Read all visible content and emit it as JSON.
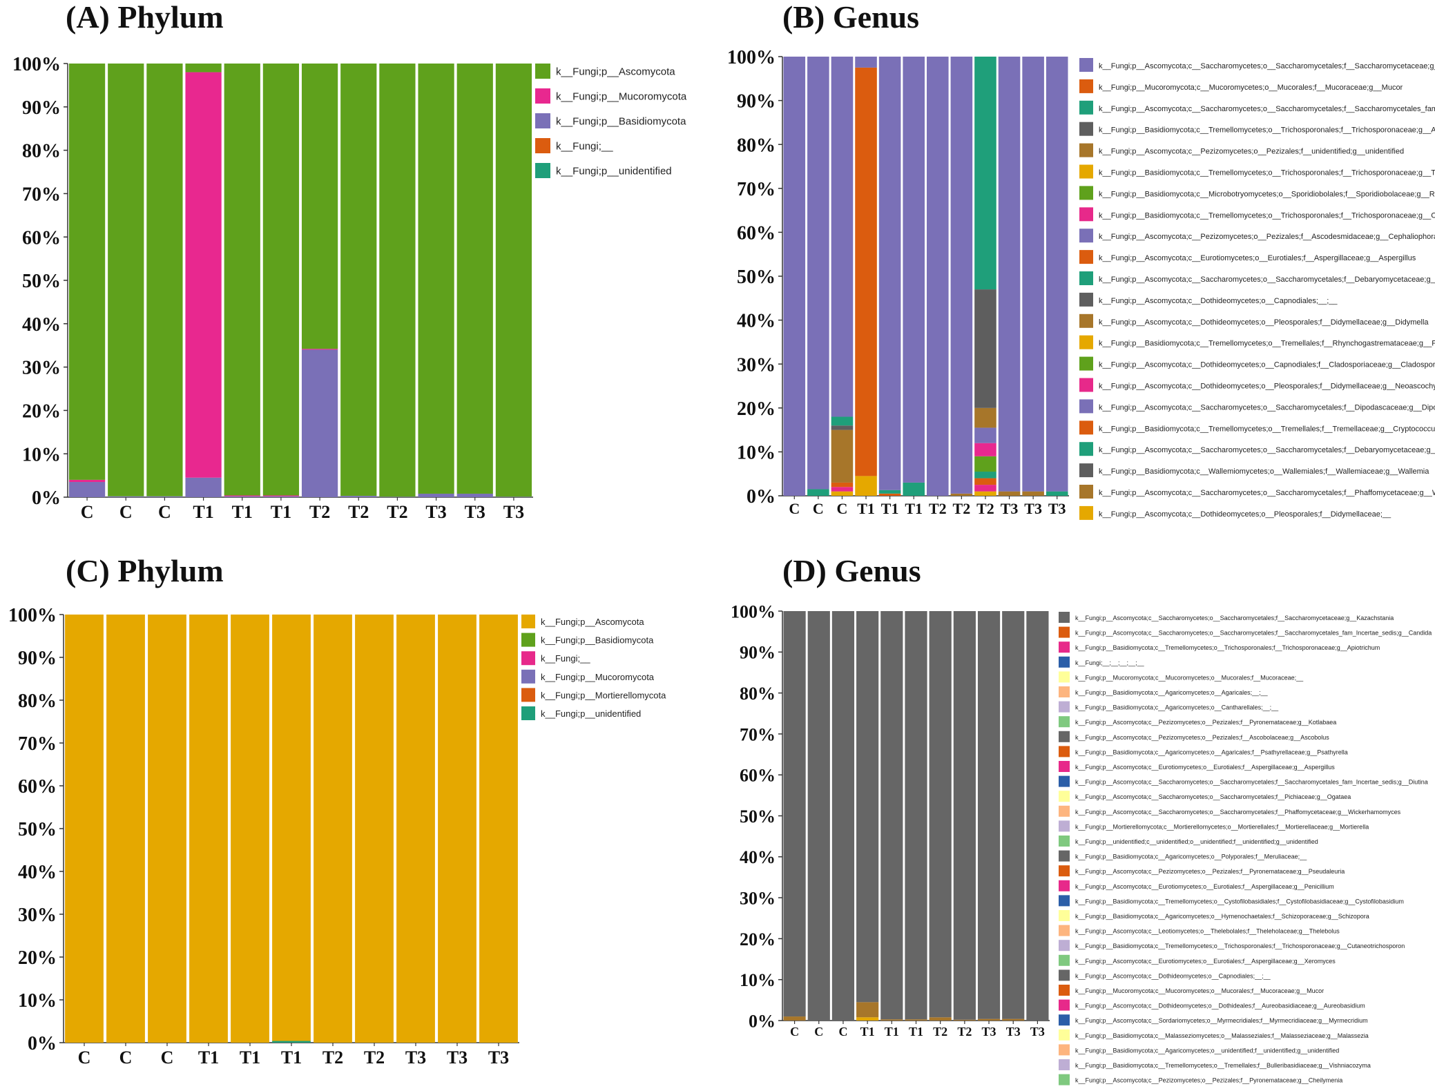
{
  "colors": {
    "green": "#5fa11c",
    "magenta": "#e8288f",
    "purple": "#7a70b7",
    "orange": "#db5c0f",
    "teal": "#1f9f7a",
    "gray": "#5e5e5e",
    "brown": "#a7762a",
    "gold": "#e5a800",
    "pink": "#e7298a",
    "blue": "#2b5ea8",
    "lightyellow": "#ffff99",
    "peach": "#fdb57f",
    "lavender": "#beaed4",
    "lightgreen": "#7fc97f",
    "darkgray": "#666666"
  },
  "chart_data": [
    {
      "id": "A",
      "type": "bar",
      "stacked": true,
      "title": "(A) Phylum",
      "categories": [
        "C",
        "C",
        "C",
        "T1",
        "T1",
        "T1",
        "T2",
        "T2",
        "T2",
        "T3",
        "T3",
        "T3"
      ],
      "ylim": [
        0,
        100
      ],
      "yticks": [
        "0%",
        "10%",
        "20%",
        "30%",
        "40%",
        "50%",
        "60%",
        "70%",
        "80%",
        "90%",
        "100%"
      ],
      "series": [
        {
          "name": "k__Fungi;p__Basidiomycota",
          "color": "purple",
          "values": [
            3.5,
            0.2,
            0.2,
            4.5,
            0.2,
            0.2,
            34,
            0.3,
            0.1,
            0.8,
            0.8,
            0.1
          ]
        },
        {
          "name": "k__Fungi;p__Mucoromycota",
          "color": "magenta",
          "values": [
            0.5,
            0,
            0,
            93.5,
            0.2,
            0.2,
            0.2,
            0,
            0,
            0,
            0,
            0
          ]
        },
        {
          "name": "k__Fungi;__",
          "color": "orange",
          "values": [
            0,
            0,
            0,
            0,
            0,
            0,
            0,
            0,
            0,
            0,
            0,
            0
          ]
        },
        {
          "name": "k__Fungi;p__unidentified",
          "color": "teal",
          "values": [
            0,
            0,
            0,
            0,
            0,
            0,
            0,
            0,
            0,
            0,
            0,
            0
          ]
        },
        {
          "name": "k__Fungi;p__Ascomycota",
          "color": "green",
          "values": [
            96,
            99.8,
            99.8,
            2,
            99.6,
            99.6,
            65.8,
            99.7,
            99.9,
            99.2,
            99.2,
            99.9
          ]
        }
      ],
      "legend": [
        {
          "label": "k__Fungi;p__Ascomycota",
          "color": "green"
        },
        {
          "label": "k__Fungi;p__Mucoromycota",
          "color": "magenta"
        },
        {
          "label": "k__Fungi;p__Basidiomycota",
          "color": "purple"
        },
        {
          "label": "k__Fungi;__",
          "color": "orange"
        },
        {
          "label": "k__Fungi;p__unidentified",
          "color": "teal"
        }
      ]
    },
    {
      "id": "B",
      "type": "bar",
      "stacked": true,
      "title": "(B) Genus",
      "categories": [
        "C",
        "C",
        "C",
        "T1",
        "T1",
        "T1",
        "T2",
        "T2",
        "T2",
        "T3",
        "T3",
        "T3"
      ],
      "ylim": [
        0,
        100
      ],
      "yticks": [
        "0%",
        "10%",
        "20%",
        "30%",
        "40%",
        "50%",
        "60%",
        "70%",
        "80%",
        "90%",
        "100%"
      ],
      "series": [
        {
          "name": "gold",
          "color": "gold",
          "values": [
            0,
            0,
            1,
            4.5,
            0,
            0,
            0,
            0,
            1,
            0,
            0,
            0
          ]
        },
        {
          "name": "pink",
          "color": "pink",
          "values": [
            0,
            0,
            1,
            0,
            0,
            0,
            0,
            0,
            1.5,
            0,
            0,
            0
          ]
        },
        {
          "name": "orange2",
          "color": "orange",
          "values": [
            0,
            0,
            1,
            0,
            0.5,
            0,
            0,
            0,
            1.5,
            0,
            0,
            0
          ]
        },
        {
          "name": "teal2",
          "color": "teal",
          "values": [
            0,
            1.5,
            0,
            0,
            0.8,
            3,
            0,
            0,
            1.5,
            0,
            0,
            1
          ]
        },
        {
          "name": "brown",
          "color": "brown",
          "values": [
            0,
            0,
            12,
            0,
            0,
            0,
            0,
            0.5,
            0,
            1,
            1,
            0
          ]
        },
        {
          "name": "gray",
          "color": "gray",
          "values": [
            0,
            0,
            1,
            0,
            0,
            0,
            0,
            0,
            0,
            0,
            0,
            0
          ]
        },
        {
          "name": "green2",
          "color": "green",
          "values": [
            0,
            0,
            0,
            0,
            0,
            0,
            0,
            0,
            3.5,
            0,
            0,
            0
          ]
        },
        {
          "name": "magenta2",
          "color": "magenta",
          "values": [
            0,
            0,
            0,
            0,
            0,
            0,
            0,
            0,
            3,
            0,
            0,
            0
          ]
        },
        {
          "name": "purple2",
          "color": "purple",
          "values": [
            0,
            0,
            0,
            0,
            0,
            0,
            0,
            0,
            3.5,
            0,
            0,
            0
          ]
        },
        {
          "name": "brown2",
          "color": "brown",
          "values": [
            0,
            0,
            0,
            0,
            0,
            0,
            0,
            0,
            4.5,
            0,
            0,
            0
          ]
        },
        {
          "name": "gray2",
          "color": "gray",
          "values": [
            0,
            0,
            0,
            0,
            0,
            0,
            0,
            0,
            27,
            0,
            0,
            0
          ]
        },
        {
          "name": "Mucor",
          "color": "orange",
          "values": [
            0,
            0,
            0,
            93,
            0,
            0,
            0,
            0,
            0,
            0,
            0,
            0
          ]
        },
        {
          "name": "teal3",
          "color": "teal",
          "values": [
            0,
            0,
            2,
            0,
            0,
            0,
            0,
            0,
            0,
            0,
            0,
            0
          ]
        },
        {
          "name": "Candida",
          "color": "teal",
          "values": [
            0,
            0,
            0,
            0,
            0,
            0,
            0,
            0,
            53,
            0,
            0,
            0
          ]
        },
        {
          "name": "Kazachstania",
          "color": "purple",
          "values": [
            100,
            98.5,
            82,
            2.5,
            98.7,
            97,
            100,
            99.5,
            0,
            99,
            99,
            99
          ]
        }
      ],
      "legend": [
        {
          "label": "k__Fungi;p__Ascomycota;c__Saccharomycetes;o__Saccharomycetales;f__Saccharomycetaceae;g__Kazachstania",
          "color": "purple"
        },
        {
          "label": "k__Fungi;p__Mucoromycota;c__Mucoromycetes;o__Mucorales;f__Mucoraceae;g__Mucor",
          "color": "orange"
        },
        {
          "label": "k__Fungi;p__Ascomycota;c__Saccharomycetes;o__Saccharomycetales;f__Saccharomycetales_fam_Incertae_sedis;g__Candida",
          "color": "teal"
        },
        {
          "label": "k__Fungi;p__Basidiomycota;c__Tremellomycetes;o__Trichosporonales;f__Trichosporonaceae;g__Apiotrichum",
          "color": "gray"
        },
        {
          "label": "k__Fungi;p__Ascomycota;c__Pezizomycetes;o__Pezizales;f__unidentified;g__unidentified",
          "color": "brown"
        },
        {
          "label": "k__Fungi;p__Basidiomycota;c__Tremellomycetes;o__Trichosporonales;f__Trichosporonaceae;g__Trichosporon",
          "color": "gold"
        },
        {
          "label": "k__Fungi;p__Basidiomycota;c__Microbotryomycetes;o__Sporidiobolales;f__Sporidiobolaceae;g__Rhodotorula",
          "color": "green"
        },
        {
          "label": "k__Fungi;p__Basidiomycota;c__Tremellomycetes;o__Trichosporonales;f__Trichosporonaceae;g__Cutaneotrichosporon",
          "color": "pink"
        },
        {
          "label": "k__Fungi;p__Ascomycota;c__Pezizomycetes;o__Pezizales;f__Ascodesmidaceae;g__Cephaliophora",
          "color": "purple"
        },
        {
          "label": "k__Fungi;p__Ascomycota;c__Eurotiomycetes;o__Eurotiales;f__Aspergillaceae;g__Aspergillus",
          "color": "orange"
        },
        {
          "label": "k__Fungi;p__Ascomycota;c__Saccharomycetes;o__Saccharomycetales;f__Debaryomycetaceae;g__Hyphopichia",
          "color": "teal"
        },
        {
          "label": "k__Fungi;p__Ascomycota;c__Dothideomycetes;o__Capnodiales;__;__",
          "color": "gray"
        },
        {
          "label": "k__Fungi;p__Ascomycota;c__Dothideomycetes;o__Pleosporales;f__Didymellaceae;g__Didymella",
          "color": "brown"
        },
        {
          "label": "k__Fungi;p__Basidiomycota;c__Tremellomycetes;o__Tremellales;f__Rhynchogastremataceae;g__Papiliotrema",
          "color": "gold"
        },
        {
          "label": "k__Fungi;p__Ascomycota;c__Dothideomycetes;o__Capnodiales;f__Cladosporiaceae;g__Cladosporium",
          "color": "green"
        },
        {
          "label": "k__Fungi;p__Ascomycota;c__Dothideomycetes;o__Pleosporales;f__Didymellaceae;g__Neoascochyta",
          "color": "pink"
        },
        {
          "label": "k__Fungi;p__Ascomycota;c__Saccharomycetes;o__Saccharomycetales;f__Dipodascaceae;g__Dipodascus",
          "color": "purple"
        },
        {
          "label": "k__Fungi;p__Basidiomycota;c__Tremellomycetes;o__Tremellales;f__Tremellaceae;g__Cryptococcus",
          "color": "orange"
        },
        {
          "label": "k__Fungi;p__Ascomycota;c__Saccharomycetes;o__Saccharomycetales;f__Debaryomycetaceae;g__Debaryomyces",
          "color": "teal"
        },
        {
          "label": "k__Fungi;p__Basidiomycota;c__Wallemiomycetes;o__Wallemiales;f__Wallemiaceae;g__Wallemia",
          "color": "gray"
        },
        {
          "label": "k__Fungi;p__Ascomycota;c__Saccharomycetes;o__Saccharomycetales;f__Phaffomycetaceae;g__Wickerhamomyces",
          "color": "brown"
        },
        {
          "label": "k__Fungi;p__Ascomycota;c__Dothideomycetes;o__Pleosporales;f__Didymellaceae;__",
          "color": "gold"
        }
      ]
    },
    {
      "id": "C",
      "type": "bar",
      "stacked": true,
      "title": "(C) Phylum",
      "categories": [
        "C",
        "C",
        "C",
        "T1",
        "T1",
        "T1",
        "T2",
        "T2",
        "T3",
        "T3",
        "T3"
      ],
      "ylim": [
        0,
        100
      ],
      "yticks": [
        "0%",
        "10%",
        "20%",
        "30%",
        "40%",
        "50%",
        "60%",
        "70%",
        "80%",
        "90%",
        "100%"
      ],
      "series": [
        {
          "name": "k__Fungi;p__unidentified",
          "color": "teal",
          "values": [
            0,
            0,
            0,
            0,
            0,
            0.4,
            0,
            0,
            0,
            0,
            0
          ]
        },
        {
          "name": "k__Fungi;p__Ascomycota",
          "color": "gold",
          "values": [
            100,
            100,
            100,
            100,
            100,
            99.6,
            100,
            100,
            100,
            100,
            100
          ]
        }
      ],
      "legend": [
        {
          "label": "k__Fungi;p__Ascomycota",
          "color": "gold"
        },
        {
          "label": "k__Fungi;p__Basidiomycota",
          "color": "green"
        },
        {
          "label": "k__Fungi;__",
          "color": "pink"
        },
        {
          "label": "k__Fungi;p__Mucoromycota",
          "color": "purple"
        },
        {
          "label": "k__Fungi;p__Mortierellomycota",
          "color": "orange"
        },
        {
          "label": "k__Fungi;p__unidentified",
          "color": "teal"
        }
      ]
    },
    {
      "id": "D",
      "type": "bar",
      "stacked": true,
      "title": "(D) Genus",
      "categories": [
        "C",
        "C",
        "C",
        "T1",
        "T1",
        "T1",
        "T2",
        "T2",
        "T3",
        "T3",
        "T3"
      ],
      "ylim": [
        0,
        100
      ],
      "yticks": [
        "0%",
        "10%",
        "20%",
        "30%",
        "40%",
        "50%",
        "60%",
        "70%",
        "80%",
        "90%",
        "100%"
      ],
      "series": [
        {
          "name": "gold",
          "color": "gold",
          "values": [
            0,
            0,
            0,
            0.8,
            0,
            0,
            0,
            0,
            0,
            0,
            0
          ]
        },
        {
          "name": "brown",
          "color": "brown",
          "values": [
            1,
            0,
            0,
            3.7,
            0.3,
            0.3,
            0.8,
            0.2,
            0.4,
            0.4,
            0
          ]
        },
        {
          "name": "Kazachstania",
          "color": "darkgray",
          "values": [
            99,
            100,
            100,
            95.5,
            99.7,
            99.7,
            99.2,
            99.8,
            99.6,
            99.6,
            100
          ]
        }
      ],
      "legend": [
        {
          "label": "k__Fungi;p__Ascomycota;c__Saccharomycetes;o__Saccharomycetales;f__Saccharomycetaceae;g__Kazachstania",
          "color": "darkgray"
        },
        {
          "label": "k__Fungi;p__Ascomycota;c__Saccharomycetes;o__Saccharomycetales;f__Saccharomycetales_fam_Incertae_sedis;g__Candida",
          "color": "orange"
        },
        {
          "label": "k__Fungi;p__Basidiomycota;c__Tremellomycetes;o__Trichosporonales;f__Trichosporonaceae;g__Apiotrichum",
          "color": "pink"
        },
        {
          "label": "k__Fungi;__;__;__;__;__",
          "color": "blue"
        },
        {
          "label": "k__Fungi;p__Mucoromycota;c__Mucoromycetes;o__Mucorales;f__Mucoraceae;__",
          "color": "lightyellow"
        },
        {
          "label": "k__Fungi;p__Basidiomycota;c__Agaricomycetes;o__Agaricales;__;__",
          "color": "peach"
        },
        {
          "label": "k__Fungi;p__Basidiomycota;c__Agaricomycetes;o__Cantharellales;__;__",
          "color": "lavender"
        },
        {
          "label": "k__Fungi;p__Ascomycota;c__Pezizomycetes;o__Pezizales;f__Pyronemataceae;g__Kotlabaea",
          "color": "lightgreen"
        },
        {
          "label": "k__Fungi;p__Ascomycota;c__Pezizomycetes;o__Pezizales;f__Ascobolaceae;g__Ascobolus",
          "color": "darkgray"
        },
        {
          "label": "k__Fungi;p__Basidiomycota;c__Agaricomycetes;o__Agaricales;f__Psathyrellaceae;g__Psathyrella",
          "color": "orange"
        },
        {
          "label": "k__Fungi;p__Ascomycota;c__Eurotiomycetes;o__Eurotiales;f__Aspergillaceae;g__Aspergillus",
          "color": "pink"
        },
        {
          "label": "k__Fungi;p__Ascomycota;c__Saccharomycetes;o__Saccharomycetales;f__Saccharomycetales_fam_Incertae_sedis;g__Diutina",
          "color": "blue"
        },
        {
          "label": "k__Fungi;p__Ascomycota;c__Saccharomycetes;o__Saccharomycetales;f__Pichiaceae;g__Ogataea",
          "color": "lightyellow"
        },
        {
          "label": "k__Fungi;p__Ascomycota;c__Saccharomycetes;o__Saccharomycetales;f__Phaffomycetaceae;g__Wickerhamomyces",
          "color": "peach"
        },
        {
          "label": "k__Fungi;p__Mortierellomycota;c__Mortierellomycetes;o__Mortierellales;f__Mortierellaceae;g__Mortierella",
          "color": "lavender"
        },
        {
          "label": "k__Fungi;p__unidentified;c__unidentified;o__unidentified;f__unidentified;g__unidentified",
          "color": "lightgreen"
        },
        {
          "label": "k__Fungi;p__Basidiomycota;c__Agaricomycetes;o__Polyporales;f__Meruliaceae;__",
          "color": "darkgray"
        },
        {
          "label": "k__Fungi;p__Ascomycota;c__Pezizomycetes;o__Pezizales;f__Pyronemataceae;g__Pseudaleuria",
          "color": "orange"
        },
        {
          "label": "k__Fungi;p__Ascomycota;c__Eurotiomycetes;o__Eurotiales;f__Aspergillaceae;g__Penicillium",
          "color": "pink"
        },
        {
          "label": "k__Fungi;p__Basidiomycota;c__Tremellomycetes;o__Cystofilobasidiales;f__Cystofilobasidiaceae;g__Cystofilobasidium",
          "color": "blue"
        },
        {
          "label": "k__Fungi;p__Basidiomycota;c__Agaricomycetes;o__Hymenochaetales;f__Schizoporaceae;g__Schizopora",
          "color": "lightyellow"
        },
        {
          "label": "k__Fungi;p__Ascomycota;c__Leotiomycetes;o__Thelebolales;f__Theleholaceae;g__Thelebolus",
          "color": "peach"
        },
        {
          "label": "k__Fungi;p__Basidiomycota;c__Tremellomycetes;o__Trichosporonales;f__Trichosporonaceae;g__Cutaneotrichosporon",
          "color": "lavender"
        },
        {
          "label": "k__Fungi;p__Ascomycota;c__Eurotiomycetes;o__Eurotiales;f__Aspergillaceae;g__Xeromyces",
          "color": "lightgreen"
        },
        {
          "label": "k__Fungi;p__Ascomycota;c__Dothideomycetes;o__Capnodiales;__;__",
          "color": "darkgray"
        },
        {
          "label": "k__Fungi;p__Mucoromycota;c__Mucoromycetes;o__Mucorales;f__Mucoraceae;g__Mucor",
          "color": "orange"
        },
        {
          "label": "k__Fungi;p__Ascomycota;c__Dothideomycetes;o__Dothideales;f__Aureobasidiaceae;g__Aureobasidium",
          "color": "pink"
        },
        {
          "label": "k__Fungi;p__Ascomycota;c__Sordariomycetes;o__Myrmecridiales;f__Myrmecridiaceae;g__Myrmecridium",
          "color": "blue"
        },
        {
          "label": "k__Fungi;p__Basidiomycota;c__Malasseziomycetes;o__Malasseziales;f__Malasseziaceae;g__Malassezia",
          "color": "lightyellow"
        },
        {
          "label": "k__Fungi;p__Basidiomycota;c__Agaricomycetes;o__unidentified;f__unidentified;g__unidentified",
          "color": "peach"
        },
        {
          "label": "k__Fungi;p__Basidiomycota;c__Tremellomycetes;o__Tremellales;f__Bulleribasidiaceae;g__Vishniacozyma",
          "color": "lavender"
        },
        {
          "label": "k__Fungi;p__Ascomycota;c__Pezizomycetes;o__Pezizales;f__Pyronemataceae;g__Cheilymenia",
          "color": "lightgreen"
        }
      ]
    }
  ]
}
